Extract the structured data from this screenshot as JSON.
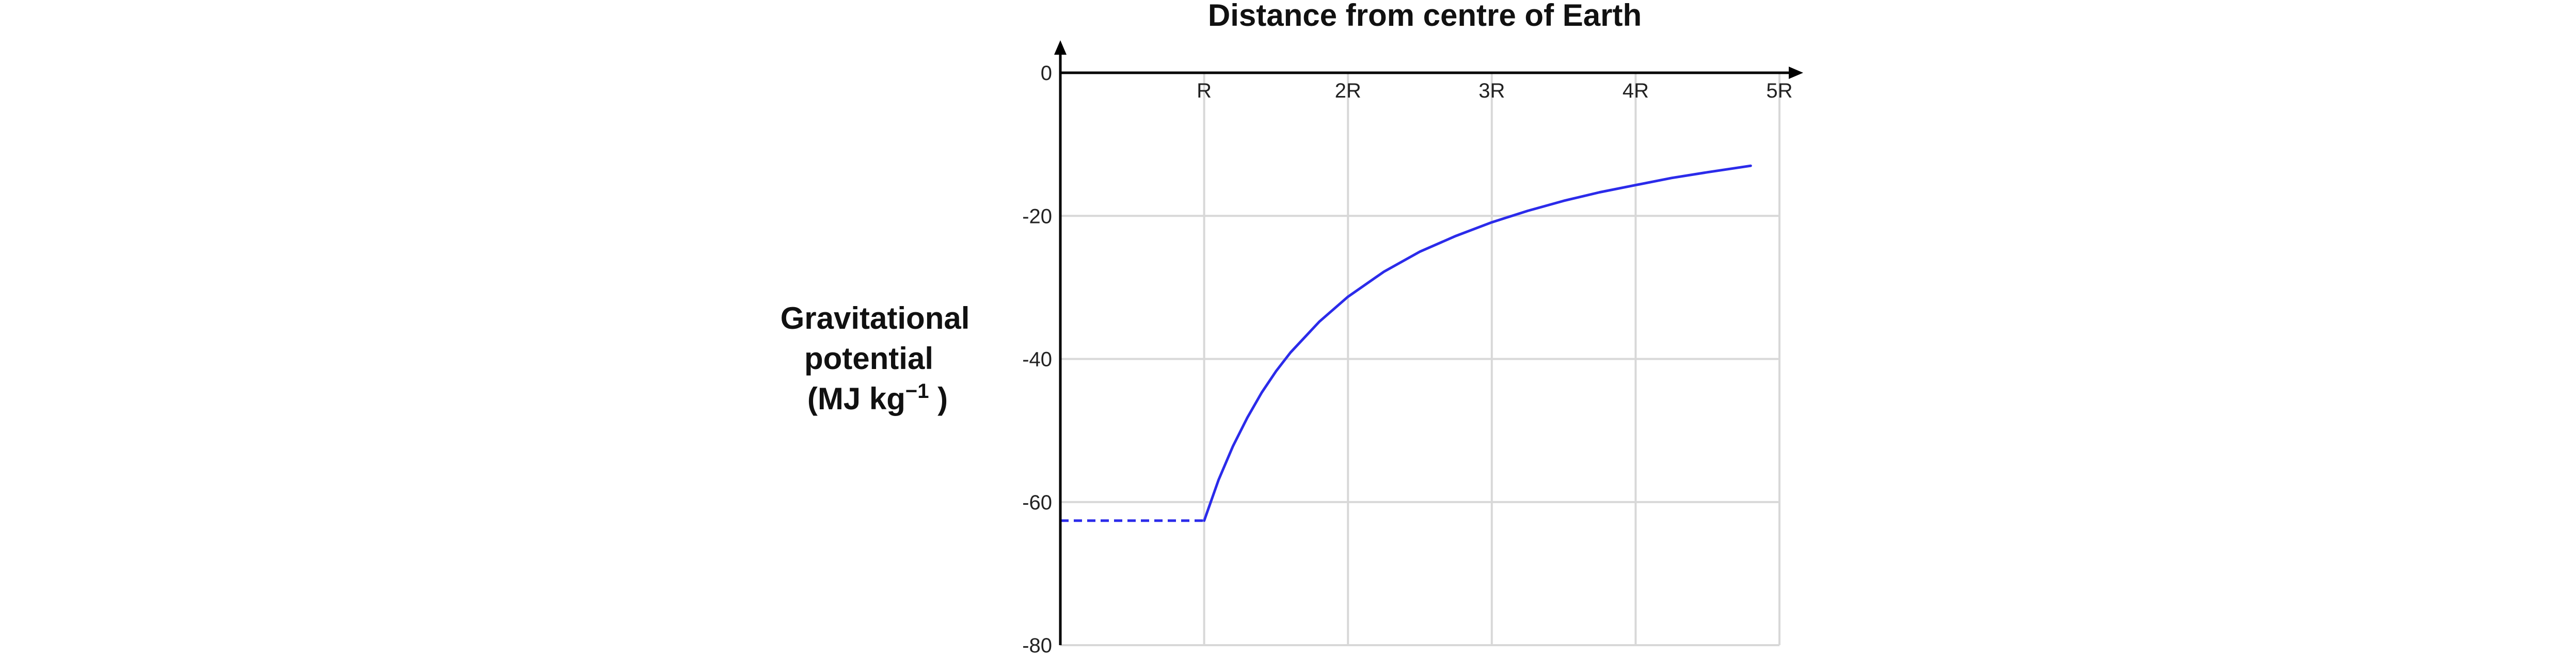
{
  "chart_data": {
    "type": "line",
    "title": "Distance from centre of Earth",
    "ylabel_lines": [
      "Gravitational",
      "potential"
    ],
    "ylabel_unit": {
      "prefix": "(MJ kg",
      "superscript": "−1",
      "suffix": " )"
    },
    "x_tick_labels": [
      "R",
      "2R",
      "3R",
      "4R",
      "5R"
    ],
    "x_tick_values": [
      1,
      2,
      3,
      4,
      5
    ],
    "xlim": [
      0,
      5
    ],
    "y_tick_labels": [
      "0",
      "-20",
      "-40",
      "-60",
      "-80"
    ],
    "y_tick_values": [
      0,
      -20,
      -40,
      -60,
      -80
    ],
    "ylim": [
      -80,
      0
    ],
    "grid": true,
    "series": [
      {
        "style": "dashed",
        "x": [
          0,
          1
        ],
        "y": [
          -62.6,
          -62.6
        ]
      },
      {
        "style": "solid",
        "x": [
          1.0,
          1.1,
          1.2,
          1.3,
          1.4,
          1.5,
          1.6,
          1.8,
          2.0,
          2.25,
          2.5,
          2.75,
          3.0,
          3.25,
          3.5,
          3.75,
          4.0,
          4.25,
          4.5,
          4.8
        ],
        "y": [
          -62.6,
          -56.9,
          -52.2,
          -48.2,
          -44.7,
          -41.7,
          -39.1,
          -34.8,
          -31.3,
          -27.8,
          -25.0,
          -22.8,
          -20.9,
          -19.3,
          -17.9,
          -16.7,
          -15.7,
          -14.7,
          -13.9,
          -13.0
        ]
      }
    ],
    "colors": {
      "line": "#2b2bea",
      "grid": "#d8d8d8",
      "axis": "#000000"
    }
  }
}
